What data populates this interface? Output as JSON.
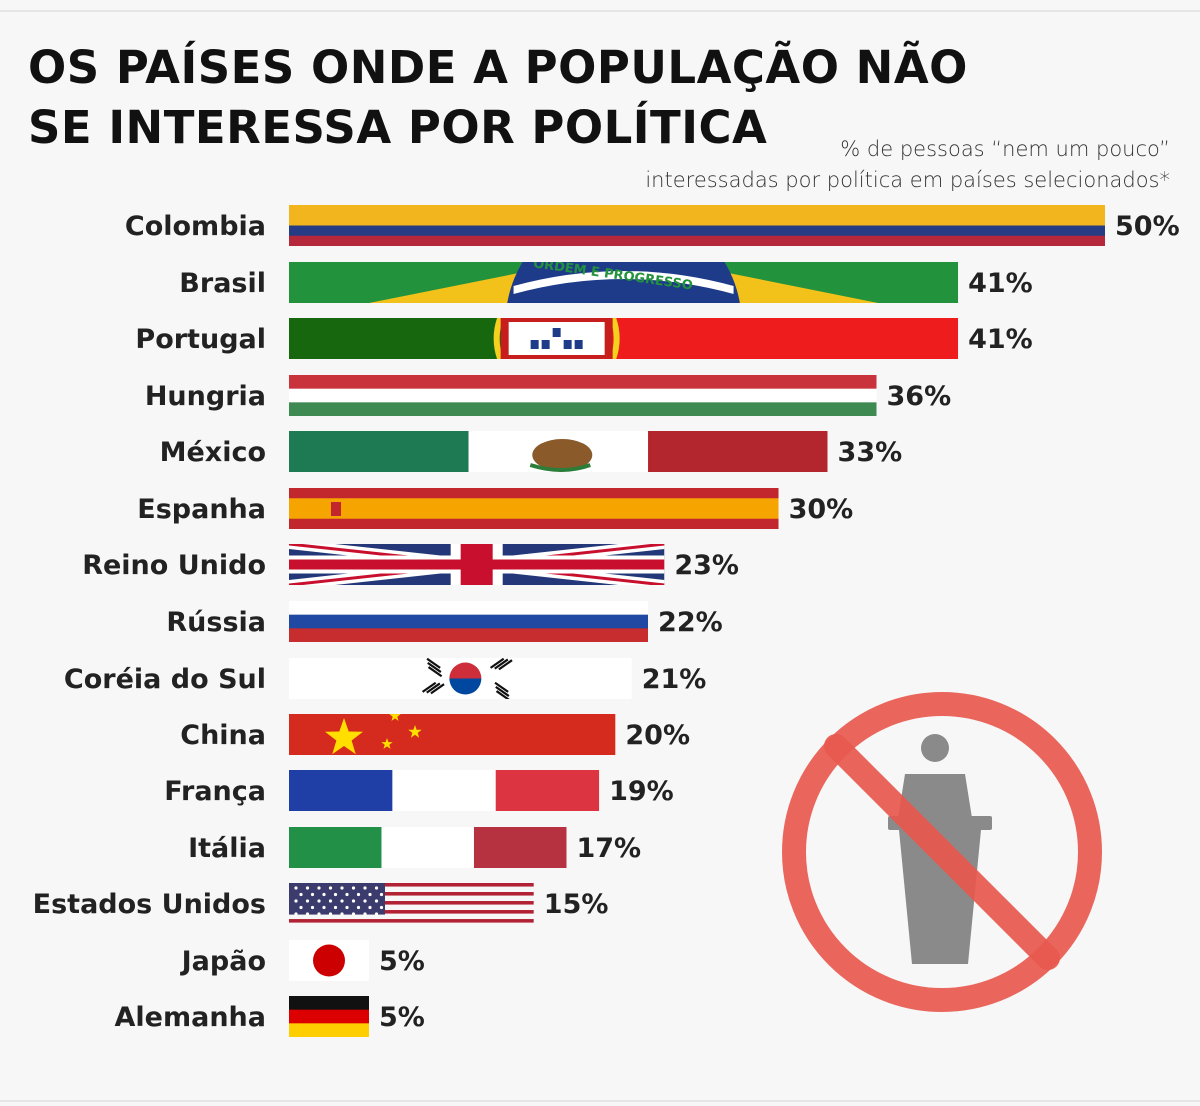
{
  "title_line1": "OS PAÍSES ONDE A POPULAÇÃO NÃO",
  "title_line2": "SE INTERESSA POR POLÍTICA",
  "subtitle_line1": "% de pessoas “nem um pouco”",
  "subtitle_line2": "interessadas por política em países selecionados*",
  "brazil_motto": "ORDEM E PROGRESSO",
  "chart_data": {
    "type": "bar",
    "orientation": "horizontal",
    "title": "OS PAÍSES ONDE A POPULAÇÃO NÃO SE INTERESSA POR POLÍTICA",
    "subtitle": "% de pessoas “nem um pouco” interessadas por política em países selecionados*",
    "categories": [
      "Colombia",
      "Brasil",
      "Portugal",
      "Hungria",
      "México",
      "Espanha",
      "Reino Unido",
      "Rússia",
      "Coréia do Sul",
      "China",
      "França",
      "Itália",
      "Estados Unidos",
      "Japão",
      "Alemanha"
    ],
    "values": [
      50,
      41,
      41,
      36,
      33,
      30,
      23,
      22,
      21,
      20,
      19,
      17,
      15,
      5,
      5
    ],
    "value_labels": [
      "50%",
      "41%",
      "41%",
      "36%",
      "33%",
      "30%",
      "23%",
      "22%",
      "21%",
      "20%",
      "19%",
      "17%",
      "15%",
      "5%",
      "5%"
    ],
    "xlim": [
      0,
      50
    ],
    "bar_style": "national-flags",
    "grid": false,
    "legend": "none"
  },
  "icon": "no-politics-icon",
  "colors": {
    "title": "#111111",
    "prohibition": "#e8594f",
    "speaker": "#8a8a8a"
  }
}
